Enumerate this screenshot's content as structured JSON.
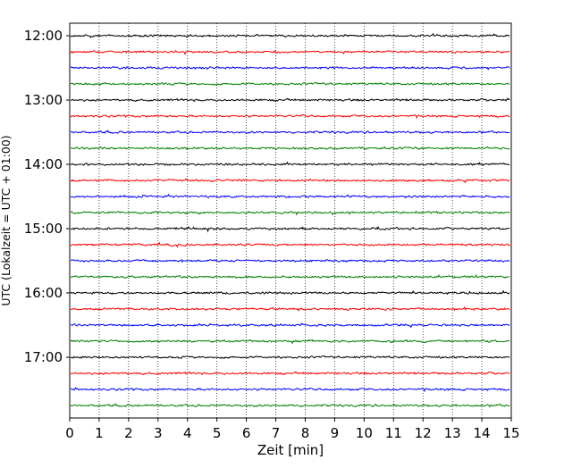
{
  "chart_data": {
    "type": "line",
    "title": "",
    "xlabel": "Zeit  [min]",
    "ylabel": "UTC (Lokalzeit = UTC + 01:00)",
    "xlim": [
      0,
      15
    ],
    "x_ticks": [
      0,
      1,
      2,
      3,
      4,
      5,
      6,
      7,
      8,
      9,
      10,
      11,
      12,
      13,
      14,
      15
    ],
    "x_tick_labels": [
      "0",
      "1",
      "2",
      "3",
      "4",
      "5",
      "6",
      "7",
      "8",
      "9",
      "10",
      "11",
      "12",
      "13",
      "14",
      "15"
    ],
    "y_ticks": [
      "12:00",
      "13:00",
      "14:00",
      "15:00",
      "16:00",
      "17:00"
    ],
    "line_start_times": [
      "12:00",
      "12:15",
      "12:30",
      "12:45",
      "13:00",
      "13:15",
      "13:30",
      "13:45",
      "14:00",
      "14:15",
      "14:30",
      "14:45",
      "15:00",
      "15:15",
      "15:30",
      "15:45",
      "16:00",
      "16:15",
      "16:30",
      "16:45",
      "17:00",
      "17:15",
      "17:30",
      "17:45"
    ],
    "line_colors": [
      "#000000",
      "#ff0000",
      "#0000ff",
      "#008000"
    ],
    "x_grid": "dotted",
    "legend": "none"
  }
}
